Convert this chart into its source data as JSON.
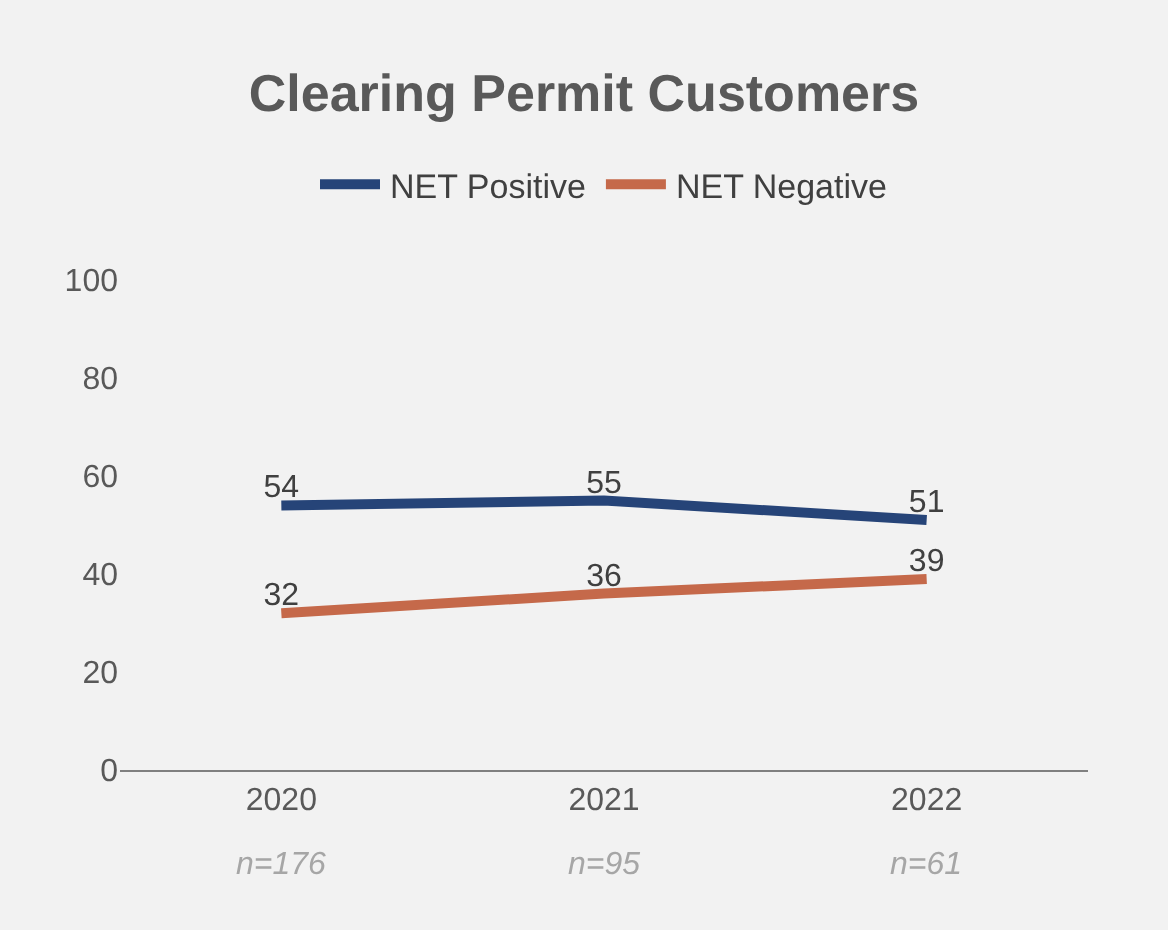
{
  "chart_data": {
    "type": "line",
    "title": "Clearing Permit Customers",
    "categories": [
      "2020",
      "2021",
      "2022"
    ],
    "series": [
      {
        "name": "NET Positive",
        "color": "#264478",
        "values": [
          54,
          55,
          51
        ]
      },
      {
        "name": "NET Negative",
        "color": "#c5694a",
        "values": [
          32,
          36,
          39
        ]
      }
    ],
    "ylim": [
      0,
      100
    ],
    "yticks": [
      0,
      20,
      40,
      60,
      80,
      100
    ],
    "grid": false,
    "legend": "top",
    "data_labels": true,
    "marker": "none",
    "line_style": "solid",
    "annotations": [
      "n=176",
      "n=95",
      "n=61"
    ]
  }
}
